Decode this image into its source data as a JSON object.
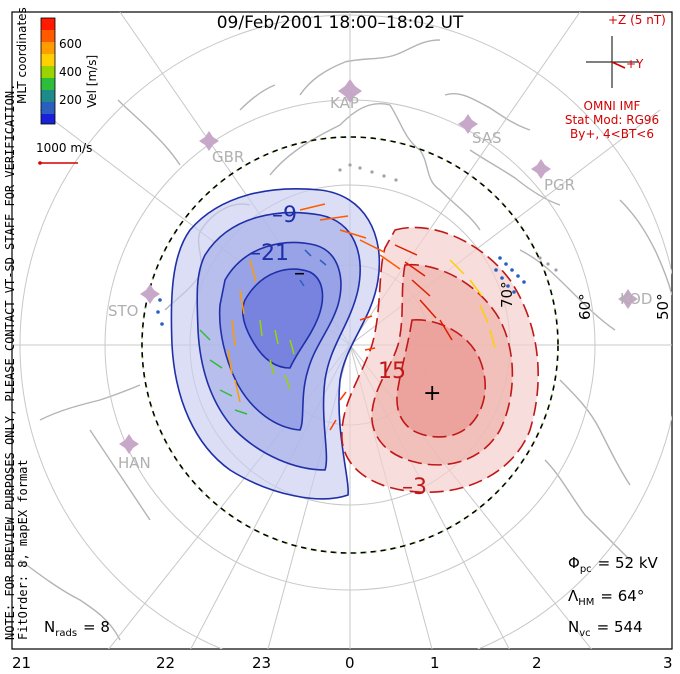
{
  "title": "09/Feb/2001 18:00–18:02 UT",
  "color_bar": {
    "label": "Vel [m/s]",
    "ticks": [
      "600",
      "400",
      "200"
    ],
    "colors": [
      "#ff1a00",
      "#ff5a00",
      "#ff9c00",
      "#ffd000",
      "#9ad400",
      "#2ebd3a",
      "#1f8a8a",
      "#2a5fc0",
      "#1a20d8"
    ]
  },
  "coord_label": "MLT coordinates",
  "scale_vector": "1000 m/s",
  "note_lines": [
    "NOTE: FOR PREVIEW PURPOSES ONLY, PLEASE CONTACT VT-SD STAFF FOR VERIFICATION.",
    "FitOrder: 8,  mapEX format"
  ],
  "imf": {
    "z_label": "+Z (5 nT)",
    "y_label": "+Y",
    "source": "OMNI IMF",
    "stat_mod": "Stat Mod: RG96",
    "conditions": "By+,  4<BT<6"
  },
  "sites": [
    "KAP",
    "GBR",
    "SAS",
    "PGR",
    "STO",
    "KOD",
    "HAN"
  ],
  "lat_labels": [
    "60°",
    "50°",
    "70°"
  ],
  "mlt_labels": [
    "21",
    "22",
    "23",
    "0",
    "1",
    "2",
    "3"
  ],
  "contour_labels": [
    "–9",
    "–21",
    "15",
    "–3"
  ],
  "extrema": {
    "min": "–",
    "max": "+"
  },
  "stats": {
    "phi_pc_sym": "Φ",
    "phi_pc_sub": "pc",
    "phi_pc_val": "= 52 kV",
    "lambda_sym": "Λ",
    "lambda_sub": "HM",
    "lambda_val": "= 64°",
    "nvc_sym": "N",
    "nvc_sub": "vc",
    "nvc_val": "= 544",
    "nrads_sym": "N",
    "nrads_sub": "rads",
    "nrads_val": "= 8"
  }
}
